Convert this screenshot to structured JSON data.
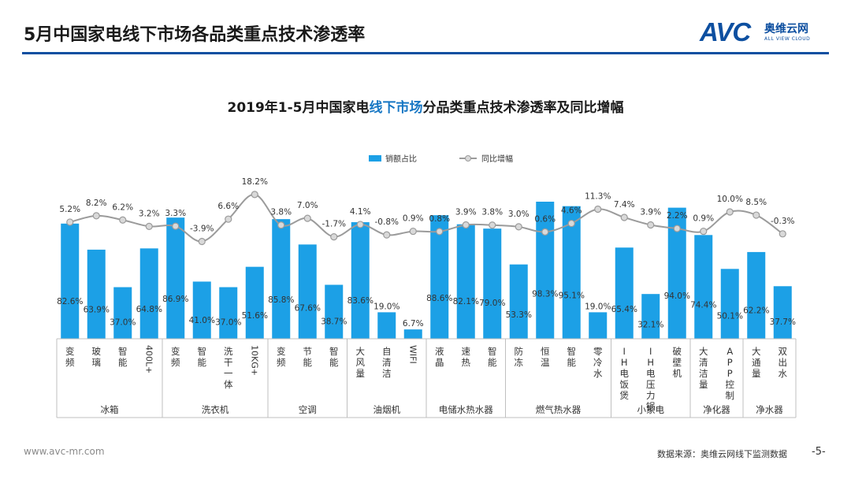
{
  "header": {
    "title": "5月中国家电线下市场各品类重点技术渗透率"
  },
  "logo": {
    "brand": "AVC",
    "name_cn": "奥维云网",
    "name_en": "ALL VIEW CLOUD"
  },
  "footer": {
    "website": "www.avc-mr.com",
    "source": "数据来源：奥维云网线下监测数据",
    "page": "-5-"
  },
  "colors": {
    "bar": "#1ca0e6",
    "line": "#9b9b9b",
    "brand": "#0d4fa0",
    "highlight": "#1777c4"
  },
  "chart_data": {
    "type": "bar",
    "title_parts": [
      "2019年1-5月中国家电",
      "线下市场",
      "分品类重点技术渗透率及同比增幅"
    ],
    "legend": [
      "销额占比",
      "同比增幅"
    ],
    "legend_position": "top",
    "categories": [
      "变频",
      "玻璃",
      "智能",
      "400L+",
      "变频",
      "智能",
      "洗干一体",
      "10KG+",
      "变频",
      "节能",
      "智能",
      "大风量",
      "自清洁",
      "WIFI",
      "液晶",
      "速热",
      "智能",
      "防冻",
      "恒温",
      "智能",
      "零冷水",
      "IH电饭煲",
      "IH电压力锅",
      "破壁机",
      "大清洁量",
      "APP控制",
      "大通量",
      "双出水"
    ],
    "groups": [
      {
        "name": "冰箱",
        "count": 4
      },
      {
        "name": "洗衣机",
        "count": 4
      },
      {
        "name": "空调",
        "count": 3
      },
      {
        "name": "油烟机",
        "count": 3
      },
      {
        "name": "电储水热水器",
        "count": 3
      },
      {
        "name": "燃气热水器",
        "count": 4
      },
      {
        "name": "小家电",
        "count": 3
      },
      {
        "name": "净化器",
        "count": 2
      },
      {
        "name": "净水器",
        "count": 2
      }
    ],
    "series": [
      {
        "name": "销额占比",
        "type": "bar",
        "values": [
          82.6,
          63.9,
          37.0,
          64.8,
          86.9,
          41.0,
          37.0,
          51.6,
          85.8,
          67.6,
          38.7,
          83.6,
          19.0,
          6.7,
          88.6,
          82.1,
          79.0,
          53.3,
          98.3,
          95.1,
          19.0,
          65.4,
          32.1,
          94.0,
          74.4,
          50.1,
          62.2,
          37.7
        ],
        "labels": [
          "82.6%",
          "63.9%",
          "37.0%",
          "64.8%",
          "86.9%",
          "41.0%",
          "37.0%",
          "51.6%",
          "85.8%",
          "67.6%",
          "38.7%",
          "83.6%",
          "19.0%",
          "6.7%",
          "88.6%",
          "82.1%",
          "79.0%",
          "53.3%",
          "98.3%",
          "95.1%",
          "19.0%",
          "65.4%",
          "32.1%",
          "94.0%",
          "74.4%",
          "50.1%",
          "62.2%",
          "37.7%"
        ]
      },
      {
        "name": "同比增幅",
        "type": "line",
        "values": [
          5.2,
          8.2,
          6.2,
          3.2,
          3.3,
          -3.9,
          6.6,
          18.2,
          3.8,
          7.0,
          -1.7,
          4.1,
          -0.8,
          0.9,
          0.8,
          3.9,
          3.8,
          3.0,
          0.6,
          4.6,
          11.3,
          7.4,
          3.9,
          2.2,
          0.9,
          10.0,
          8.5,
          -0.3
        ],
        "labels": [
          "5.2%",
          "8.2%",
          "6.2%",
          "3.2%",
          "3.3%",
          "-3.9%",
          "6.6%",
          "18.2%",
          "3.8%",
          "7.0%",
          "-1.7%",
          "4.1%",
          "-0.8%",
          "0.9%",
          "0.8%",
          "3.9%",
          "3.8%",
          "3.0%",
          "0.6%",
          "4.6%",
          "11.3%",
          "7.4%",
          "3.9%",
          "2.2%",
          "0.9%",
          "10.0%",
          "8.5%",
          "-0.3%"
        ]
      }
    ],
    "grid": false
  }
}
